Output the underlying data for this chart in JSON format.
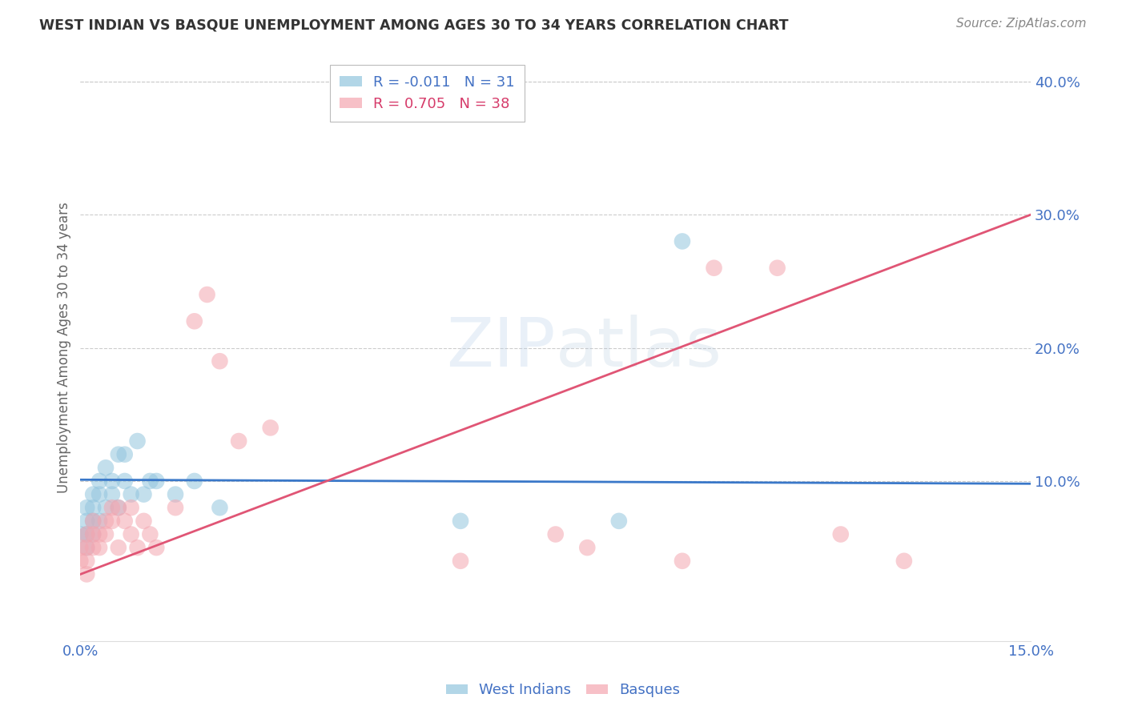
{
  "title": "WEST INDIAN VS BASQUE UNEMPLOYMENT AMONG AGES 30 TO 34 YEARS CORRELATION CHART",
  "source": "Source: ZipAtlas.com",
  "ylabel": "Unemployment Among Ages 30 to 34 years",
  "xlim": [
    0.0,
    0.15
  ],
  "ylim": [
    -0.02,
    0.42
  ],
  "west_indian_R": -0.011,
  "west_indian_N": 31,
  "basque_R": 0.705,
  "basque_N": 38,
  "west_indian_color": "#92c5de",
  "basque_color": "#f4a6b0",
  "west_indian_line_color": "#3a78c9",
  "basque_line_color": "#e05575",
  "wi_line_y0": 0.101,
  "wi_line_y1": 0.098,
  "ba_line_y0": 0.03,
  "ba_line_y1": 0.3,
  "west_indian_x": [
    0.0,
    0.001,
    0.001,
    0.001,
    0.001,
    0.002,
    0.002,
    0.002,
    0.002,
    0.003,
    0.003,
    0.003,
    0.004,
    0.004,
    0.005,
    0.005,
    0.006,
    0.006,
    0.007,
    0.007,
    0.008,
    0.009,
    0.01,
    0.011,
    0.012,
    0.015,
    0.018,
    0.022,
    0.06,
    0.085,
    0.095
  ],
  "west_indian_y": [
    0.06,
    0.07,
    0.08,
    0.06,
    0.05,
    0.08,
    0.09,
    0.07,
    0.06,
    0.09,
    0.1,
    0.07,
    0.11,
    0.08,
    0.09,
    0.1,
    0.12,
    0.08,
    0.1,
    0.12,
    0.09,
    0.13,
    0.09,
    0.1,
    0.1,
    0.09,
    0.1,
    0.08,
    0.07,
    0.07,
    0.28
  ],
  "basque_x": [
    0.0,
    0.0,
    0.001,
    0.001,
    0.001,
    0.001,
    0.002,
    0.002,
    0.002,
    0.003,
    0.003,
    0.004,
    0.004,
    0.005,
    0.005,
    0.006,
    0.006,
    0.007,
    0.008,
    0.008,
    0.009,
    0.01,
    0.011,
    0.012,
    0.015,
    0.018,
    0.02,
    0.022,
    0.025,
    0.03,
    0.06,
    0.075,
    0.08,
    0.095,
    0.1,
    0.11,
    0.12,
    0.13
  ],
  "basque_y": [
    0.05,
    0.04,
    0.06,
    0.05,
    0.04,
    0.03,
    0.06,
    0.07,
    0.05,
    0.06,
    0.05,
    0.07,
    0.06,
    0.08,
    0.07,
    0.08,
    0.05,
    0.07,
    0.08,
    0.06,
    0.05,
    0.07,
    0.06,
    0.05,
    0.08,
    0.22,
    0.24,
    0.19,
    0.13,
    0.14,
    0.04,
    0.06,
    0.05,
    0.04,
    0.26,
    0.26,
    0.06,
    0.04
  ]
}
